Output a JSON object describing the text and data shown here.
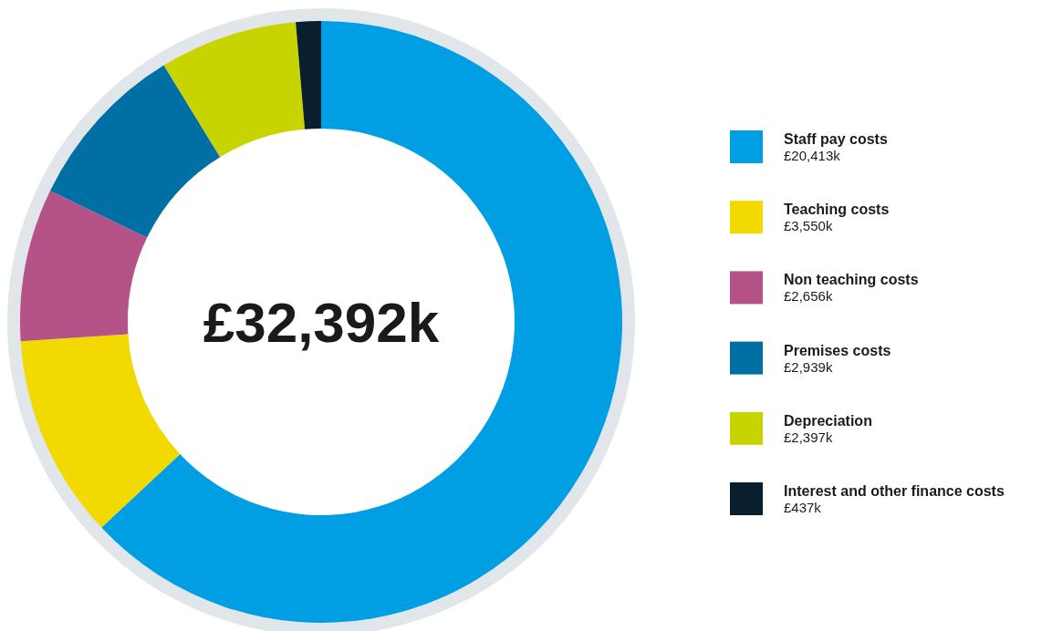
{
  "chart_data": {
    "type": "donut",
    "categories": [
      "Staff pay costs",
      "Teaching costs",
      "Non teaching costs",
      "Premises costs",
      "Depreciation",
      "Interest and other finance costs"
    ],
    "values": [
      20413,
      3550,
      2656,
      2939,
      2397,
      437
    ],
    "colors": [
      "#009fe3",
      "#f2d900",
      "#b55287",
      "#0070a4",
      "#c8d400",
      "#0a1f2d"
    ],
    "value_labels": [
      "£20,413k",
      "£3,550k",
      "£2,656k",
      "£2,939k",
      "£2,397k",
      "£437k"
    ],
    "annotations": [
      "£32,392k"
    ],
    "legend": "right"
  }
}
